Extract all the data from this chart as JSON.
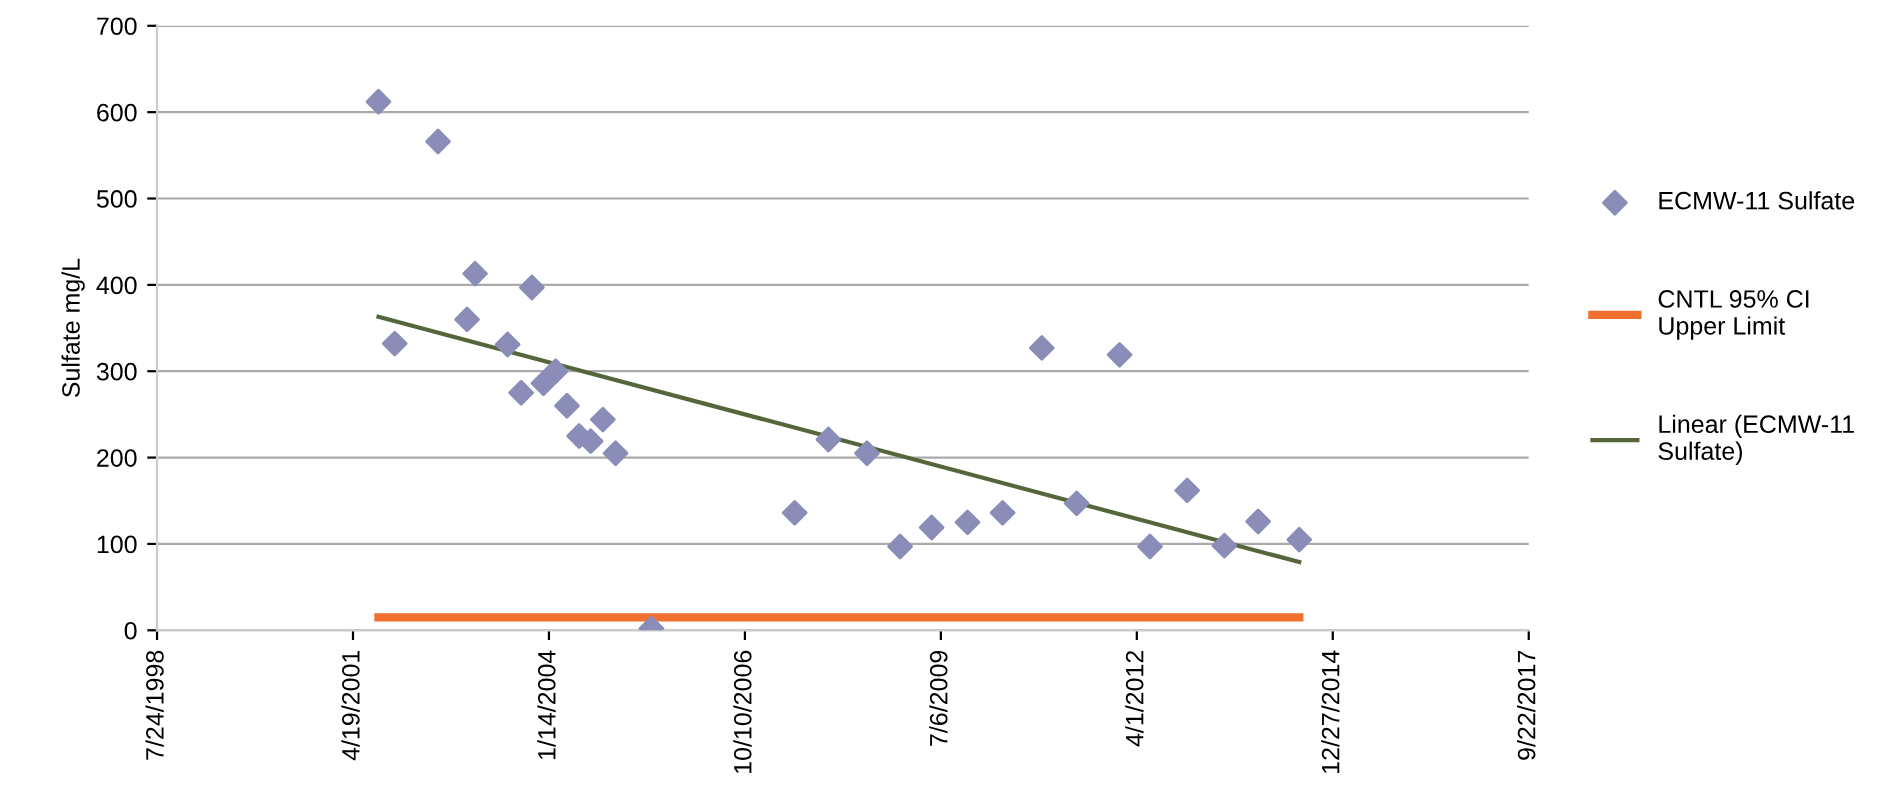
{
  "chart_data": {
    "type": "scatter",
    "ylabel": "Sulfate mg/L",
    "grid": "y",
    "legend": "right",
    "xlim": [
      "1998-07-24",
      "2017-09-22"
    ],
    "xticks": [
      {
        "value": "1998-07-24",
        "label": "7/24/1998"
      },
      {
        "value": "2001-04-19",
        "label": "4/19/2001"
      },
      {
        "value": "2004-01-14",
        "label": "1/14/2004"
      },
      {
        "value": "2006-10-10",
        "label": "10/10/2006"
      },
      {
        "value": "2009-07-06",
        "label": "7/6/2009"
      },
      {
        "value": "2012-04-01",
        "label": "4/1/2012"
      },
      {
        "value": "2014-12-27",
        "label": "12/27/2014"
      },
      {
        "value": "2017-09-22",
        "label": "9/22/2017"
      }
    ],
    "ylim": [
      0,
      700
    ],
    "yticks": [
      0,
      100,
      200,
      300,
      400,
      500,
      600,
      700
    ],
    "series": [
      {
        "name": "ECMW-11 Sulfate",
        "marker": "diamond",
        "color": "#8a8db8",
        "x": [
          "2001-08-27",
          "2001-11-18",
          "2002-06-27",
          "2003-01-02",
          "2002-11-22",
          "2003-10-19",
          "2003-06-17",
          "2003-08-25",
          "2003-12-17",
          "2004-02-17",
          "2004-04-15",
          "2004-06-16",
          "2004-08-14",
          "2004-10-15",
          "2004-12-19",
          "2005-06-20",
          "2007-06-21",
          "2007-12-10",
          "2008-06-24",
          "2008-12-10",
          "2009-05-20",
          "2009-11-19",
          "2010-05-17",
          "2010-12-03",
          "2011-05-30",
          "2012-01-04",
          "2012-06-07",
          "2012-12-14",
          "2013-06-22",
          "2013-12-11",
          "2014-07-09"
        ],
        "values": [
          612,
          332,
          566,
          413,
          360,
          397,
          331,
          275,
          286,
          300,
          260,
          225,
          219,
          244,
          205,
          2,
          136,
          221,
          205,
          97,
          119,
          125,
          136,
          327,
          147,
          319,
          97,
          162,
          98,
          126,
          105
        ]
      },
      {
        "name": "CNTL 95% CI Upper Limit",
        "type": "line",
        "color": "#f07030",
        "x": [
          "2001-08-27",
          "2014-07-09"
        ],
        "values": [
          15,
          15
        ]
      },
      {
        "name": "Linear (ECMW-11 Sulfate)",
        "type": "line",
        "color": "#55663a",
        "x": [
          "2001-08-27",
          "2014-07-09"
        ],
        "values": [
          363,
          79
        ]
      }
    ]
  }
}
